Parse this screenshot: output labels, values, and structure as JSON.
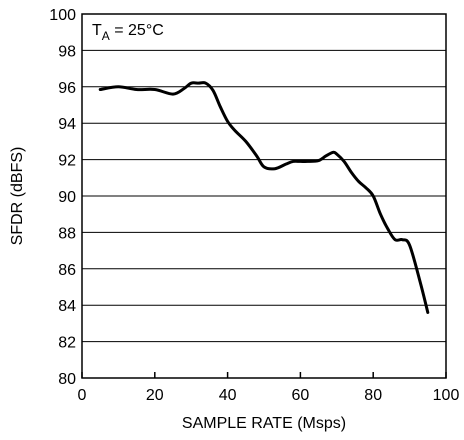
{
  "chart_data": {
    "type": "line",
    "title": "",
    "xlabel": "SAMPLE RATE (Msps)",
    "ylabel": "SFDR (dBFS)",
    "xlim": [
      0,
      100
    ],
    "ylim": [
      80,
      100
    ],
    "x_ticks": [
      0,
      20,
      40,
      60,
      80,
      100
    ],
    "y_ticks": [
      80,
      82,
      84,
      86,
      88,
      90,
      92,
      94,
      96,
      98,
      100
    ],
    "grid": "horizontal",
    "annotation": {
      "main": "T",
      "sub": "A",
      "rest": " = 25°C"
    },
    "series": [
      {
        "color": "#000000",
        "x": [
          5,
          10,
          15,
          20,
          25,
          28,
          30,
          32,
          34,
          36,
          38,
          40,
          42,
          45,
          48,
          50,
          53,
          56,
          58,
          60,
          62,
          65,
          67,
          69,
          70,
          72,
          74,
          76,
          78,
          80,
          82,
          84,
          86,
          88,
          90,
          93,
          95
        ],
        "y": [
          95.85,
          96.0,
          95.85,
          95.85,
          95.6,
          95.9,
          96.2,
          96.2,
          96.2,
          95.8,
          94.9,
          94.1,
          93.6,
          93.0,
          92.2,
          91.6,
          91.5,
          91.75,
          91.9,
          91.9,
          91.9,
          91.95,
          92.2,
          92.4,
          92.3,
          91.9,
          91.3,
          90.8,
          90.45,
          90.0,
          89.0,
          88.2,
          87.6,
          87.6,
          87.3,
          85.2,
          83.6
        ]
      }
    ]
  }
}
